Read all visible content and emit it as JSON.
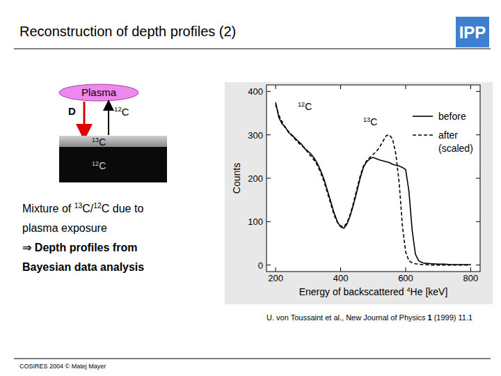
{
  "slide": {
    "title": "Reconstruction of depth profiles (2)",
    "logo": "IPP",
    "diagram": {
      "plasma": "Plasma",
      "ion": "D",
      "sputtered": "12C",
      "layer_top": "13C",
      "substrate": "12C"
    },
    "text_lines": [
      "Mixture of 13C/12C due to",
      "plasma exposure",
      "⇒ Depth profiles from",
      "Bayesian data analysis"
    ],
    "citation": {
      "before": "U. von Toussaint et al., New Journal of Physics ",
      "volume": "1",
      "after": " (1999) 11.1"
    },
    "footer": "COSIRES 2004 © Matej Mayer"
  },
  "chart_data": {
    "type": "line",
    "x_label": "Energy of backscattered 4He [keV]",
    "y_label": "Counts",
    "x": [
      200,
      210,
      220,
      230,
      240,
      250,
      260,
      270,
      280,
      290,
      300,
      310,
      320,
      330,
      340,
      350,
      360,
      370,
      380,
      390,
      400,
      410,
      420,
      430,
      440,
      450,
      460,
      470,
      480,
      490,
      500,
      510,
      520,
      530,
      540,
      550,
      560,
      570,
      580,
      590,
      600,
      610,
      620,
      630,
      640,
      650,
      660,
      680,
      700,
      720,
      740,
      760,
      780,
      800
    ],
    "series": [
      {
        "name": "before",
        "color": "#000000",
        "line_style": "solid",
        "values": [
          375,
          340,
          325,
          318,
          305,
          300,
          292,
          285,
          278,
          268,
          262,
          255,
          245,
          232,
          215,
          195,
          170,
          145,
          120,
          100,
          88,
          85,
          95,
          115,
          140,
          170,
          200,
          225,
          238,
          245,
          248,
          245,
          242,
          240,
          238,
          236,
          232,
          230,
          228,
          225,
          220,
          170,
          80,
          25,
          10,
          6,
          4,
          3,
          2,
          2,
          1,
          1,
          1,
          1
        ]
      },
      {
        "name": "after",
        "color": "#000000",
        "line_style": "dashed",
        "values": [
          370,
          345,
          330,
          315,
          308,
          298,
          290,
          282,
          275,
          270,
          258,
          250,
          240,
          228,
          210,
          190,
          165,
          140,
          115,
          98,
          90,
          88,
          98,
          118,
          145,
          175,
          205,
          228,
          240,
          248,
          255,
          262,
          272,
          285,
          298,
          300,
          290,
          255,
          190,
          90,
          30,
          10,
          5,
          3,
          2,
          1,
          1,
          0,
          0,
          0,
          0,
          0,
          0,
          0
        ]
      }
    ],
    "annotations": [
      "12C",
      "13C",
      "(scaled)"
    ],
    "xlim": [
      172,
      829
    ],
    "ylim": [
      -15,
      415
    ],
    "xticks": [
      200,
      400,
      600,
      800
    ],
    "yticks": [
      0,
      100,
      200,
      300,
      400
    ],
    "legend": "upper right",
    "grid": false
  }
}
